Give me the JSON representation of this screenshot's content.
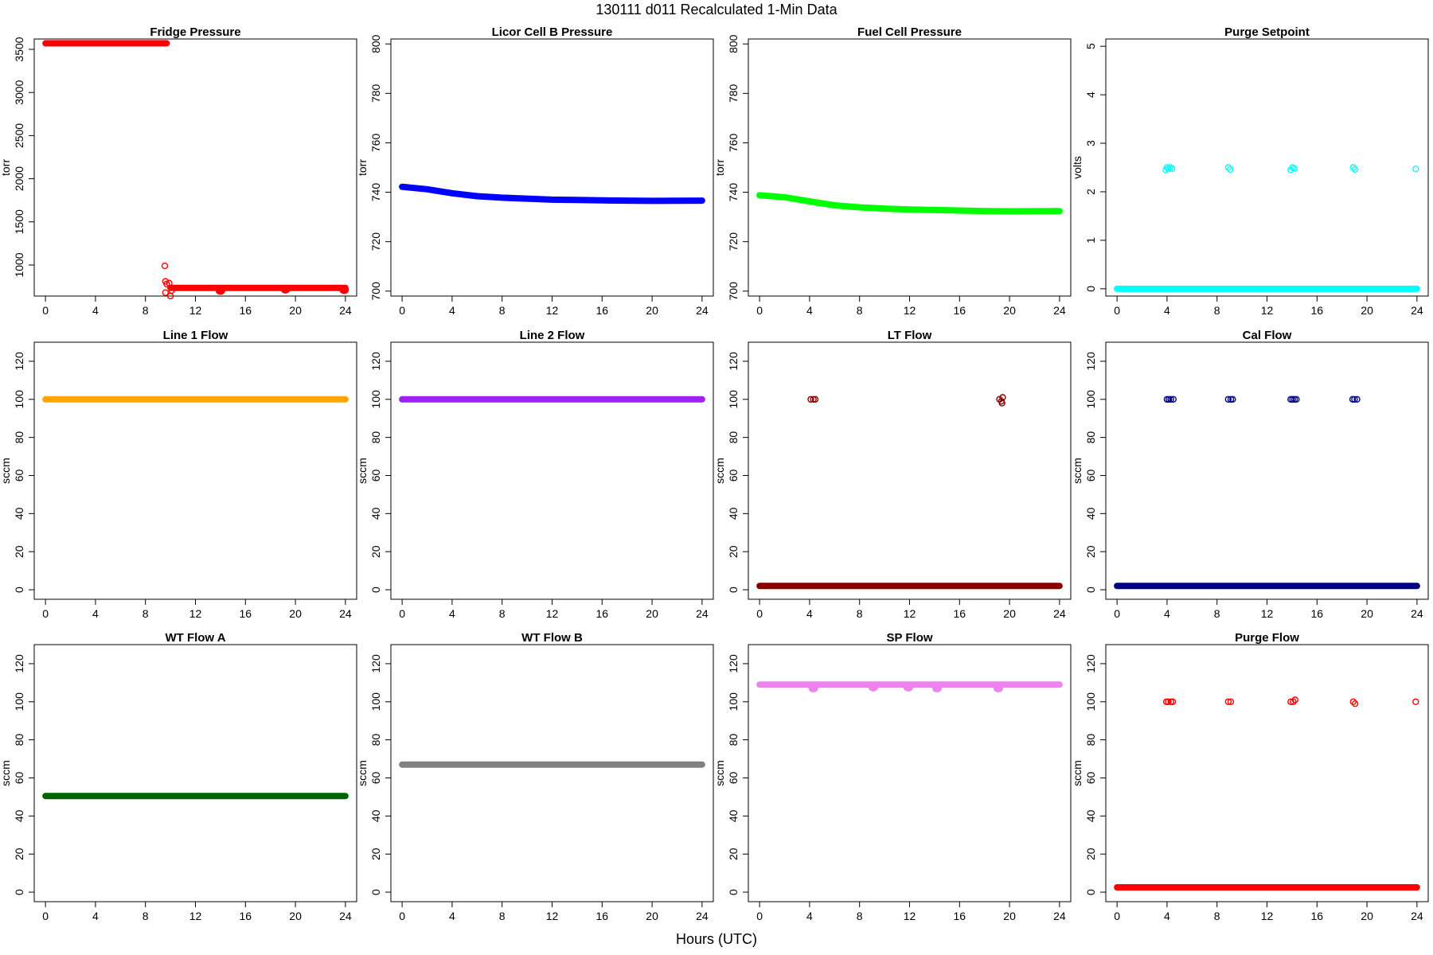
{
  "page": {
    "title": "130111    d011    Recalculated 1-Min Data",
    "xlabel": "Hours (UTC)"
  },
  "chart_data": [
    {
      "type": "scatter",
      "title": "Fridge Pressure",
      "ylabel": "torr",
      "color": "#ff0000",
      "xlim": [
        -0.9,
        24.9
      ],
      "ylim": [
        640,
        3620
      ],
      "xticks": [
        0,
        4,
        8,
        12,
        16,
        20,
        24
      ],
      "yticks": [
        1000,
        1500,
        2000,
        2500,
        3000,
        3500
      ],
      "segments": [
        [
          0,
          9.7,
          3570
        ],
        [
          10.0,
          24,
          735
        ]
      ],
      "dips": [
        [
          14.0,
          700
        ],
        [
          19.2,
          715
        ],
        [
          23.9,
          710
        ]
      ],
      "points": [
        [
          9.55,
          990
        ],
        [
          9.6,
          810
        ],
        [
          9.7,
          780
        ],
        [
          9.9,
          790
        ],
        [
          9.6,
          680
        ],
        [
          10.0,
          640
        ],
        [
          10.1,
          705
        ]
      ]
    },
    {
      "type": "scatter",
      "title": "Licor Cell B Pressure",
      "ylabel": "torr",
      "color": "#0000ff",
      "xlim": [
        -0.9,
        24.9
      ],
      "ylim": [
        698,
        802
      ],
      "xticks": [
        0,
        4,
        8,
        12,
        16,
        20,
        24
      ],
      "yticks": [
        700,
        720,
        740,
        760,
        780,
        800
      ],
      "curve": [
        [
          0,
          742.2
        ],
        [
          2,
          741.2
        ],
        [
          4,
          739.6
        ],
        [
          6,
          738.4
        ],
        [
          8,
          737.8
        ],
        [
          10,
          737.4
        ],
        [
          12,
          737.0
        ],
        [
          14,
          736.9
        ],
        [
          16,
          736.7
        ],
        [
          18,
          736.6
        ],
        [
          20,
          736.5
        ],
        [
          24,
          736.6
        ]
      ]
    },
    {
      "type": "scatter",
      "title": "Fuel Cell Pressure",
      "ylabel": "torr",
      "color": "#00ff00",
      "xlim": [
        -0.9,
        24.9
      ],
      "ylim": [
        698,
        802
      ],
      "xticks": [
        0,
        4,
        8,
        12,
        16,
        20,
        24
      ],
      "yticks": [
        700,
        720,
        740,
        760,
        780,
        800
      ],
      "curve": [
        [
          0,
          738.8
        ],
        [
          2,
          738.0
        ],
        [
          4,
          736.3
        ],
        [
          6,
          734.7
        ],
        [
          8,
          733.9
        ],
        [
          10,
          733.4
        ],
        [
          12,
          733.0
        ],
        [
          14,
          732.8
        ],
        [
          16,
          732.6
        ],
        [
          18,
          732.4
        ],
        [
          20,
          732.3
        ],
        [
          24,
          732.4
        ]
      ]
    },
    {
      "type": "scatter",
      "title": "Purge Setpoint",
      "ylabel": "volts",
      "color": "#00ffff",
      "xlim": [
        -0.9,
        24.9
      ],
      "ylim": [
        -0.15,
        5.15
      ],
      "xticks": [
        0,
        4,
        8,
        12,
        16,
        20,
        24
      ],
      "yticks": [
        0,
        1,
        2,
        3,
        4,
        5
      ],
      "segments": [
        [
          0,
          24,
          0
        ]
      ],
      "points": [
        [
          3.9,
          2.45
        ],
        [
          4.0,
          2.5
        ],
        [
          4.1,
          2.47
        ],
        [
          4.25,
          2.5
        ],
        [
          4.4,
          2.48
        ],
        [
          8.9,
          2.5
        ],
        [
          9.05,
          2.46
        ],
        [
          13.9,
          2.45
        ],
        [
          14.05,
          2.5
        ],
        [
          14.2,
          2.48
        ],
        [
          18.9,
          2.5
        ],
        [
          19.05,
          2.46
        ],
        [
          23.9,
          2.47
        ]
      ]
    },
    {
      "type": "scatter",
      "title": "Line 1 Flow",
      "ylabel": "sccm",
      "color": "#ffa500",
      "xlim": [
        -0.9,
        24.9
      ],
      "ylim": [
        -5,
        130
      ],
      "xticks": [
        0,
        4,
        8,
        12,
        16,
        20,
        24
      ],
      "yticks": [
        0,
        20,
        40,
        60,
        80,
        100,
        120
      ],
      "segments": [
        [
          0,
          24,
          100
        ]
      ]
    },
    {
      "type": "scatter",
      "title": "Line 2 Flow",
      "ylabel": "sccm",
      "color": "#a020f0",
      "xlim": [
        -0.9,
        24.9
      ],
      "ylim": [
        -5,
        130
      ],
      "xticks": [
        0,
        4,
        8,
        12,
        16,
        20,
        24
      ],
      "yticks": [
        0,
        20,
        40,
        60,
        80,
        100,
        120
      ],
      "segments": [
        [
          0,
          24,
          100
        ]
      ]
    },
    {
      "type": "scatter",
      "title": "LT Flow",
      "ylabel": "sccm",
      "color": "#8b0000",
      "xlim": [
        -0.9,
        24.9
      ],
      "ylim": [
        -5,
        130
      ],
      "xticks": [
        0,
        4,
        8,
        12,
        16,
        20,
        24
      ],
      "yticks": [
        0,
        20,
        40,
        60,
        80,
        100,
        120
      ],
      "segments": [
        [
          0,
          24,
          2
        ]
      ],
      "points": [
        [
          4.1,
          100
        ],
        [
          4.3,
          100
        ],
        [
          4.45,
          100
        ],
        [
          19.2,
          100
        ],
        [
          19.35,
          99
        ],
        [
          19.45,
          101
        ],
        [
          19.4,
          98
        ]
      ]
    },
    {
      "type": "scatter",
      "title": "Cal Flow",
      "ylabel": "sccm",
      "color": "#000080",
      "xlim": [
        -0.9,
        24.9
      ],
      "ylim": [
        -5,
        130
      ],
      "xticks": [
        0,
        4,
        8,
        12,
        16,
        20,
        24
      ],
      "yticks": [
        0,
        20,
        40,
        60,
        80,
        100,
        120
      ],
      "segments": [
        [
          0,
          24,
          2
        ]
      ],
      "points": [
        [
          4.0,
          100
        ],
        [
          4.15,
          100
        ],
        [
          4.3,
          100
        ],
        [
          4.5,
          100
        ],
        [
          8.9,
          100
        ],
        [
          9.1,
          100
        ],
        [
          9.25,
          100
        ],
        [
          13.9,
          100
        ],
        [
          14.05,
          100
        ],
        [
          14.2,
          100
        ],
        [
          14.35,
          100
        ],
        [
          18.85,
          100
        ],
        [
          19.0,
          100
        ],
        [
          19.2,
          100
        ]
      ]
    },
    {
      "type": "scatter",
      "title": "WT Flow A",
      "ylabel": "sccm",
      "color": "#006400",
      "xlim": [
        -0.9,
        24.9
      ],
      "ylim": [
        -5,
        130
      ],
      "xticks": [
        0,
        4,
        8,
        12,
        16,
        20,
        24
      ],
      "yticks": [
        0,
        20,
        40,
        60,
        80,
        100,
        120
      ],
      "segments": [
        [
          0,
          24,
          50.5
        ]
      ]
    },
    {
      "type": "scatter",
      "title": "WT Flow B",
      "ylabel": "sccm",
      "color": "#808080",
      "xlim": [
        -0.9,
        24.9
      ],
      "ylim": [
        -5,
        130
      ],
      "xticks": [
        0,
        4,
        8,
        12,
        16,
        20,
        24
      ],
      "yticks": [
        0,
        20,
        40,
        60,
        80,
        100,
        120
      ],
      "segments": [
        [
          0,
          24,
          67
        ]
      ]
    },
    {
      "type": "scatter",
      "title": "SP Flow",
      "ylabel": "sccm",
      "color": "#ee82ee",
      "xlim": [
        -0.9,
        24.9
      ],
      "ylim": [
        -5,
        130
      ],
      "xticks": [
        0,
        4,
        8,
        12,
        16,
        20,
        24
      ],
      "yticks": [
        0,
        20,
        40,
        60,
        80,
        100,
        120
      ],
      "segments": [
        [
          0,
          24,
          109
        ]
      ],
      "dips": [
        [
          4.3,
          107
        ],
        [
          9.1,
          107.5
        ],
        [
          11.9,
          107.5
        ],
        [
          14.2,
          107
        ],
        [
          19.1,
          107
        ]
      ]
    },
    {
      "type": "scatter",
      "title": "Purge Flow",
      "ylabel": "sccm",
      "color": "#ff0000",
      "xlim": [
        -0.9,
        24.9
      ],
      "ylim": [
        -5,
        130
      ],
      "xticks": [
        0,
        4,
        8,
        12,
        16,
        20,
        24
      ],
      "yticks": [
        0,
        20,
        40,
        60,
        80,
        100,
        120
      ],
      "segments": [
        [
          0,
          24,
          2.5
        ]
      ],
      "points": [
        [
          3.95,
          100
        ],
        [
          4.1,
          100
        ],
        [
          4.3,
          100
        ],
        [
          4.45,
          100
        ],
        [
          8.9,
          100
        ],
        [
          9.1,
          100
        ],
        [
          13.9,
          100
        ],
        [
          14.1,
          100
        ],
        [
          14.25,
          101
        ],
        [
          18.9,
          100
        ],
        [
          19.05,
          99
        ],
        [
          23.9,
          100
        ]
      ]
    }
  ]
}
